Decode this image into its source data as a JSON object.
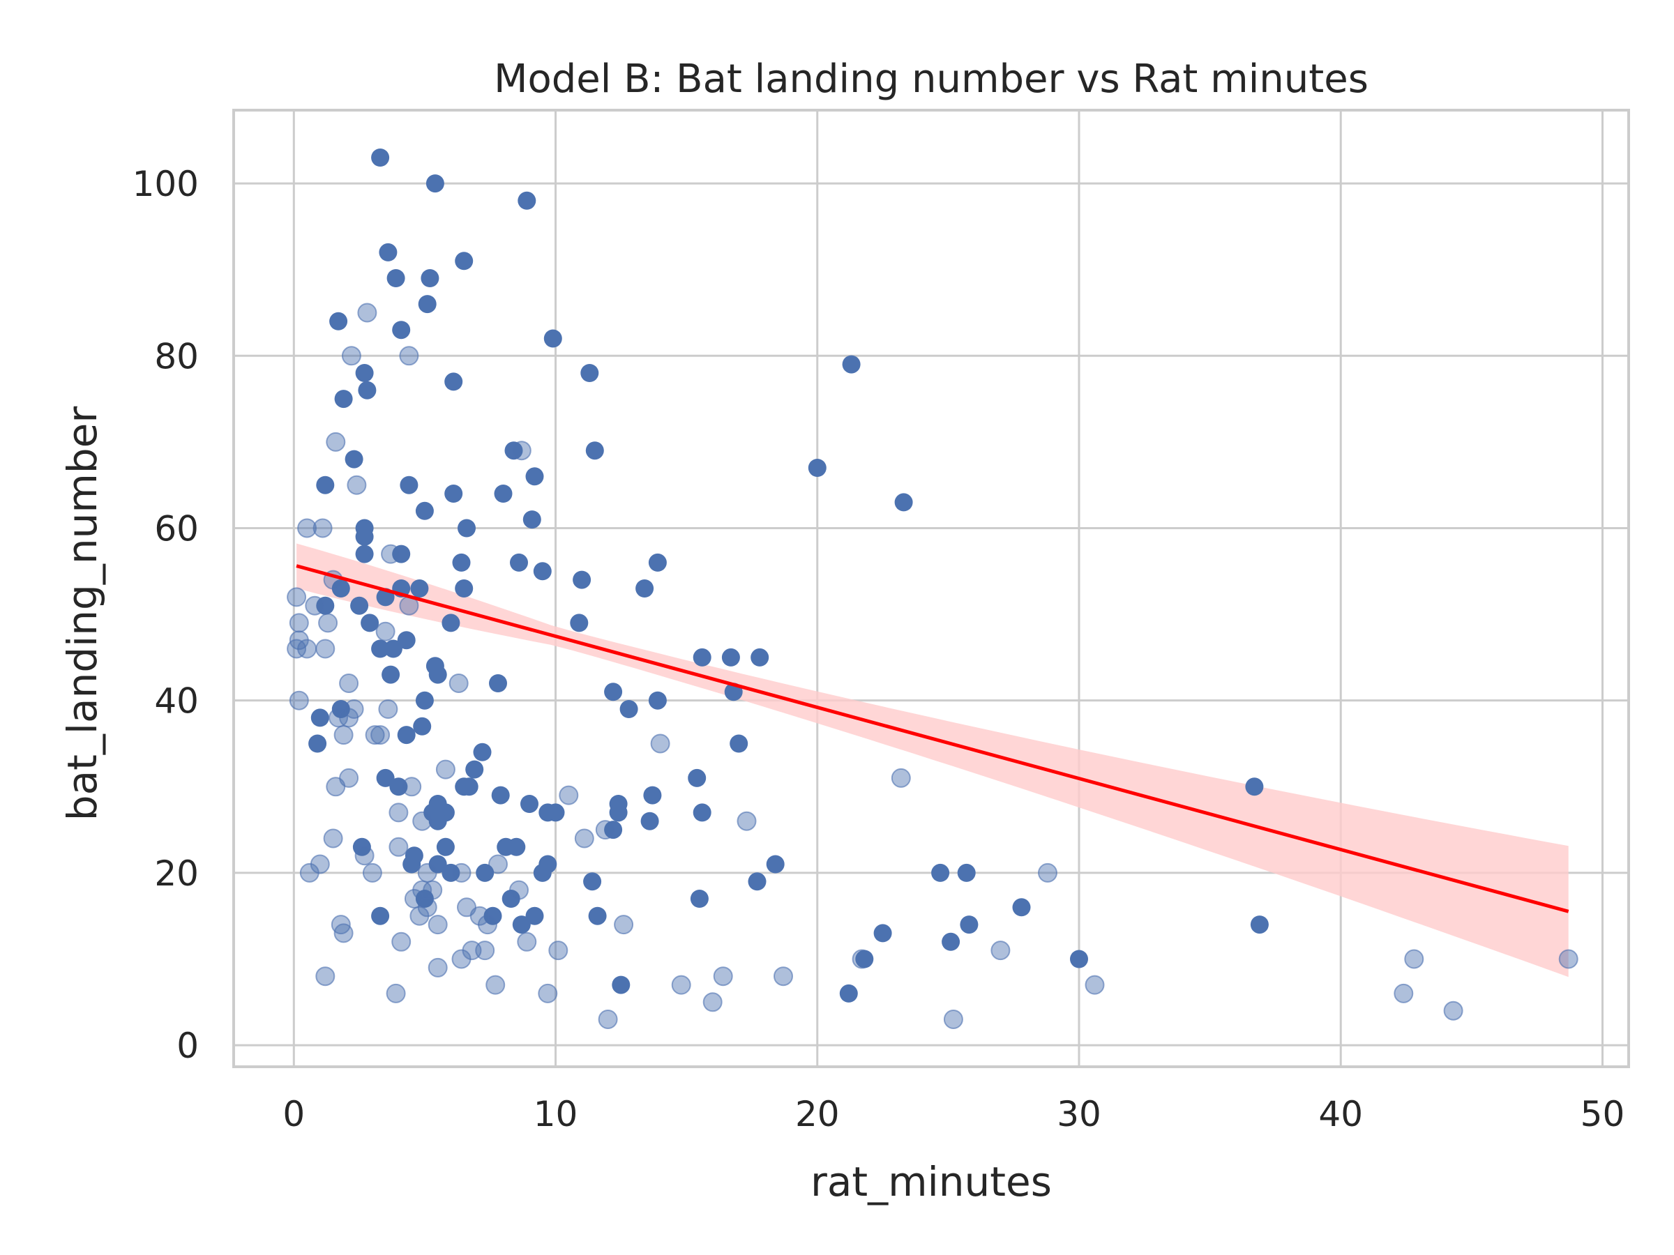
{
  "chart_data": {
    "type": "scatter",
    "title": "Model B: Bat landing number vs Rat minutes",
    "xlabel": "rat_minutes",
    "ylabel": "bat_landing_number",
    "xlim": [
      -2.3,
      51.0
    ],
    "ylim": [
      -2.5,
      108.5
    ],
    "x_ticks": [
      0,
      10,
      20,
      30,
      40,
      50
    ],
    "y_ticks": [
      0,
      20,
      40,
      60,
      80,
      100
    ],
    "grid": true,
    "legend": "none",
    "point_color": "#4c72b0",
    "line_color": "#ff0000",
    "band_color": "#ffcccc",
    "series": [
      {
        "style": "solid",
        "points": [
          [
            3.3,
            103
          ],
          [
            5.4,
            100
          ],
          [
            8.9,
            98
          ],
          [
            3.6,
            92
          ],
          [
            6.5,
            91
          ],
          [
            3.9,
            89
          ],
          [
            5.2,
            89
          ],
          [
            5.1,
            86
          ],
          [
            1.7,
            84
          ],
          [
            4.1,
            83
          ],
          [
            9.9,
            82
          ],
          [
            2.7,
            78
          ],
          [
            11.3,
            78
          ],
          [
            21.3,
            79
          ],
          [
            6.1,
            77
          ],
          [
            2.8,
            76
          ],
          [
            1.9,
            75
          ],
          [
            8.4,
            69
          ],
          [
            11.5,
            69
          ],
          [
            2.3,
            68
          ],
          [
            9.2,
            66
          ],
          [
            20.0,
            67
          ],
          [
            1.2,
            65
          ],
          [
            4.4,
            65
          ],
          [
            6.1,
            64
          ],
          [
            8.0,
            64
          ],
          [
            23.3,
            63
          ],
          [
            5.0,
            62
          ],
          [
            9.1,
            61
          ],
          [
            2.7,
            60
          ],
          [
            6.6,
            60
          ],
          [
            2.7,
            59
          ],
          [
            2.7,
            57
          ],
          [
            4.1,
            57
          ],
          [
            6.4,
            56
          ],
          [
            8.6,
            56
          ],
          [
            13.9,
            56
          ],
          [
            9.5,
            55
          ],
          [
            11.0,
            54
          ],
          [
            1.8,
            53
          ],
          [
            4.1,
            53
          ],
          [
            4.8,
            53
          ],
          [
            6.5,
            53
          ],
          [
            13.4,
            53
          ],
          [
            3.5,
            52
          ],
          [
            1.2,
            51
          ],
          [
            2.5,
            51
          ],
          [
            2.9,
            49
          ],
          [
            6.0,
            49
          ],
          [
            10.9,
            49
          ],
          [
            3.3,
            46
          ],
          [
            3.8,
            46
          ],
          [
            4.3,
            47
          ],
          [
            15.6,
            45
          ],
          [
            16.7,
            45
          ],
          [
            17.8,
            45
          ],
          [
            5.4,
            44
          ],
          [
            5.5,
            43
          ],
          [
            3.7,
            43
          ],
          [
            7.8,
            42
          ],
          [
            12.2,
            41
          ],
          [
            16.8,
            41
          ],
          [
            1.8,
            39
          ],
          [
            12.8,
            39
          ],
          [
            13.9,
            40
          ],
          [
            5.0,
            40
          ],
          [
            1.0,
            38
          ],
          [
            4.9,
            37
          ],
          [
            4.3,
            36
          ],
          [
            0.9,
            35
          ],
          [
            17.0,
            35
          ],
          [
            7.2,
            34
          ],
          [
            6.9,
            32
          ],
          [
            3.5,
            31
          ],
          [
            15.4,
            31
          ],
          [
            4.0,
            30
          ],
          [
            6.5,
            30
          ],
          [
            6.7,
            30
          ],
          [
            36.7,
            30
          ],
          [
            7.9,
            29
          ],
          [
            13.7,
            29
          ],
          [
            5.5,
            28
          ],
          [
            9.0,
            28
          ],
          [
            12.4,
            28
          ],
          [
            9.7,
            27
          ],
          [
            10.0,
            27
          ],
          [
            12.4,
            27
          ],
          [
            15.6,
            27
          ],
          [
            5.3,
            27
          ],
          [
            5.8,
            27
          ],
          [
            13.6,
            26
          ],
          [
            5.5,
            26
          ],
          [
            12.2,
            25
          ],
          [
            2.6,
            23
          ],
          [
            5.8,
            23
          ],
          [
            8.1,
            23
          ],
          [
            8.5,
            23
          ],
          [
            4.6,
            22
          ],
          [
            4.5,
            21
          ],
          [
            5.5,
            21
          ],
          [
            9.7,
            21
          ],
          [
            18.4,
            21
          ],
          [
            6.0,
            20
          ],
          [
            9.5,
            20
          ],
          [
            7.3,
            20
          ],
          [
            24.7,
            20
          ],
          [
            25.7,
            20
          ],
          [
            17.7,
            19
          ],
          [
            11.4,
            19
          ],
          [
            8.3,
            17
          ],
          [
            15.5,
            17
          ],
          [
            27.8,
            16
          ],
          [
            5.0,
            17
          ],
          [
            3.3,
            15
          ],
          [
            7.6,
            15
          ],
          [
            9.2,
            15
          ],
          [
            11.6,
            15
          ],
          [
            8.7,
            14
          ],
          [
            25.8,
            14
          ],
          [
            36.9,
            14
          ],
          [
            22.5,
            13
          ],
          [
            25.1,
            12
          ],
          [
            21.8,
            10
          ],
          [
            30.0,
            10
          ],
          [
            12.5,
            7
          ],
          [
            21.2,
            6
          ]
        ]
      },
      {
        "style": "faded",
        "points": [
          [
            0.5,
            60
          ],
          [
            1.1,
            60
          ],
          [
            0.1,
            52
          ],
          [
            0.2,
            49
          ],
          [
            0.2,
            47
          ],
          [
            0.1,
            46
          ],
          [
            0.5,
            46
          ],
          [
            1.2,
            46
          ],
          [
            0.2,
            40
          ],
          [
            0.8,
            51
          ],
          [
            1.3,
            49
          ],
          [
            1.5,
            54
          ],
          [
            1.6,
            70
          ],
          [
            2.4,
            65
          ],
          [
            2.8,
            85
          ],
          [
            2.2,
            80
          ],
          [
            4.4,
            80
          ],
          [
            3.7,
            57
          ],
          [
            3.5,
            48
          ],
          [
            4.4,
            51
          ],
          [
            2.1,
            42
          ],
          [
            1.7,
            38
          ],
          [
            2.1,
            38
          ],
          [
            2.3,
            39
          ],
          [
            1.9,
            36
          ],
          [
            3.1,
            36
          ],
          [
            3.6,
            39
          ],
          [
            3.3,
            36
          ],
          [
            2.1,
            31
          ],
          [
            1.6,
            30
          ],
          [
            1.0,
            21
          ],
          [
            0.6,
            20
          ],
          [
            1.5,
            24
          ],
          [
            2.7,
            22
          ],
          [
            3.0,
            20
          ],
          [
            4.0,
            27
          ],
          [
            4.0,
            23
          ],
          [
            4.5,
            30
          ],
          [
            4.9,
            26
          ],
          [
            5.1,
            20
          ],
          [
            5.3,
            18
          ],
          [
            4.9,
            18
          ],
          [
            4.6,
            17
          ],
          [
            5.1,
            16
          ],
          [
            4.8,
            15
          ],
          [
            5.5,
            14
          ],
          [
            6.3,
            42
          ],
          [
            5.8,
            32
          ],
          [
            6.4,
            20
          ],
          [
            6.6,
            16
          ],
          [
            7.4,
            14
          ],
          [
            7.8,
            21
          ],
          [
            7.3,
            11
          ],
          [
            6.4,
            10
          ],
          [
            6.8,
            11
          ],
          [
            7.1,
            15
          ],
          [
            1.8,
            14
          ],
          [
            1.9,
            13
          ],
          [
            4.1,
            12
          ],
          [
            3.9,
            6
          ],
          [
            1.2,
            8
          ],
          [
            5.5,
            9
          ],
          [
            7.7,
            7
          ],
          [
            8.6,
            18
          ],
          [
            8.7,
            69
          ],
          [
            8.9,
            12
          ],
          [
            10.1,
            11
          ],
          [
            9.7,
            6
          ],
          [
            10.5,
            29
          ],
          [
            11.1,
            24
          ],
          [
            11.9,
            25
          ],
          [
            12.6,
            14
          ],
          [
            12.0,
            3
          ],
          [
            14.0,
            35
          ],
          [
            14.8,
            7
          ],
          [
            16.0,
            5
          ],
          [
            16.4,
            8
          ],
          [
            17.3,
            26
          ],
          [
            18.7,
            8
          ],
          [
            21.7,
            10
          ],
          [
            23.2,
            31
          ],
          [
            25.2,
            3
          ],
          [
            27.0,
            11
          ],
          [
            28.8,
            20
          ],
          [
            30.6,
            7
          ],
          [
            42.4,
            6
          ],
          [
            42.8,
            10
          ],
          [
            44.3,
            4
          ],
          [
            48.7,
            10
          ]
        ]
      }
    ],
    "regression": {
      "x_range": [
        0.1,
        48.7
      ],
      "intercept": 55.7,
      "slope": -0.825,
      "ci_half_width_ends": [
        2.6,
        7.6
      ],
      "ci_half_width_min": 1.1,
      "x_min_ci": 10.0
    }
  }
}
